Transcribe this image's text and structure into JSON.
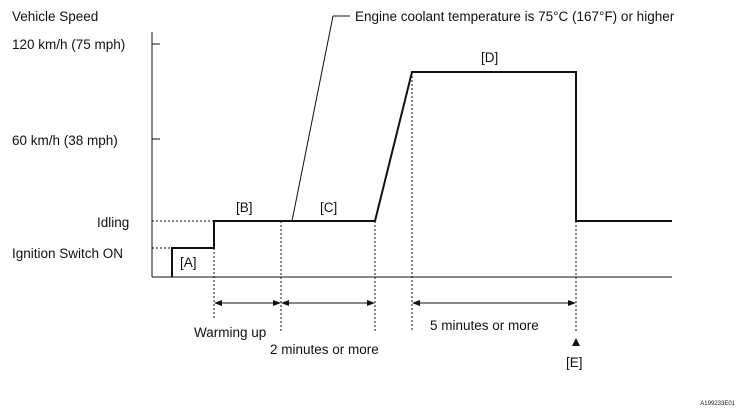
{
  "chart_data": {
    "type": "line",
    "title": "",
    "ylabel": "Vehicle Speed",
    "xlabel": "",
    "y_ticks": [
      "120 km/h (75 mph)",
      "60 km/h (38 mph)",
      "Idling",
      "Ignition Switch ON"
    ],
    "phase_labels": [
      "[A]",
      "[B]",
      "[C]",
      "[D]"
    ],
    "callout": "Engine coolant temperature is 75°C (167°F) or higher",
    "intervals": [
      "Warming up",
      "2 minutes or more",
      "5 minutes or more"
    ],
    "marker_label": "[E]",
    "figure_id": "A199233E01"
  }
}
